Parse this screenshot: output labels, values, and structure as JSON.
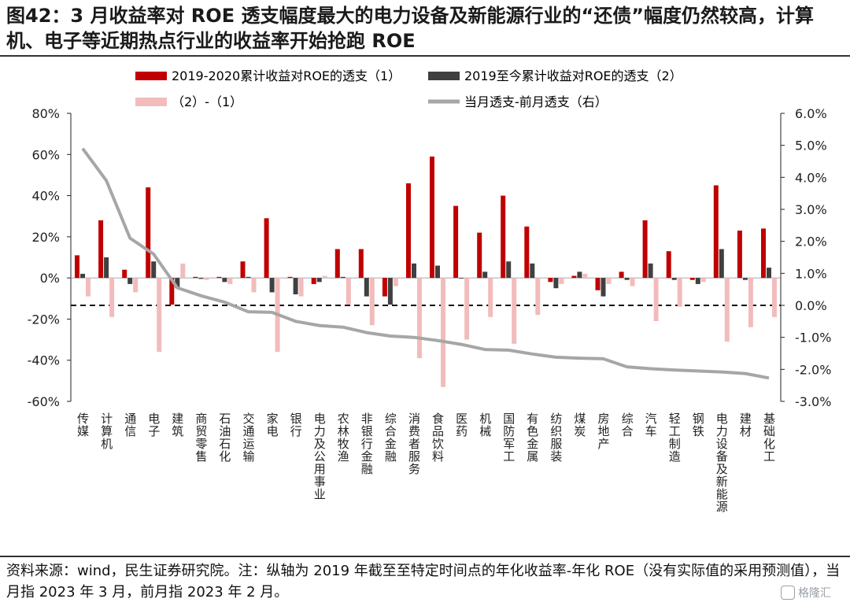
{
  "page": {
    "title": "图42：3 月收益率对 ROE 透支幅度最大的电力设备及新能源行业的“还债”幅度仍然较高，计算机、电子等近期热点行业的收益率开始抢跑 ROE",
    "footer": "资料来源：wind，民生证券研究院。注：纵轴为 2019 年截至至特定时间点的年化收益率-年化 ROE（没有实际值的采用预测值），当月指 2023 年 3 月，前月指 2023 年 2 月。",
    "watermark": "格隆汇"
  },
  "colors": {
    "series1": "#c00000",
    "series2": "#404040",
    "series3": "#f2bcbc",
    "series4": "#a6a6a6"
  },
  "chart_data": {
    "type": "bar",
    "title": "",
    "legend_position": "top",
    "categories": [
      "传媒",
      "计算机",
      "通信",
      "电子",
      "建筑",
      "商贸零售",
      "石油石化",
      "交通运输",
      "家电",
      "银行",
      "电力及公用事业",
      "农林牧渔",
      "非银行金融",
      "综合金融",
      "消费者服务",
      "食品饮料",
      "医药",
      "机械",
      "国防军工",
      "有色金属",
      "纺织服装",
      "煤炭",
      "房地产",
      "综合",
      "汽车",
      "轻工制造",
      "钢铁",
      "电力设备及新能源",
      "建材",
      "基础化工"
    ],
    "left_axis": {
      "ylim": [
        -60,
        80
      ],
      "ticks": [
        -60,
        -40,
        -20,
        0,
        20,
        40,
        60,
        80
      ],
      "unit": "%"
    },
    "right_axis": {
      "ylim": [
        -3.0,
        6.0
      ],
      "ticks": [
        -3.0,
        -2.0,
        -1.0,
        0.0,
        1.0,
        2.0,
        3.0,
        4.0,
        5.0,
        6.0
      ],
      "unit": "%"
    },
    "right_reference_line": 0.0,
    "series": [
      {
        "name": "2019-2020累计收益对ROE的透支（1）",
        "kind": "bar",
        "axis": "left",
        "values": [
          11,
          28,
          4,
          44,
          -13,
          0.5,
          0.5,
          8,
          29,
          0.5,
          -3,
          14,
          14,
          -9,
          46,
          59,
          35,
          22,
          40,
          25,
          -2,
          1,
          -6,
          3,
          28,
          13,
          -1,
          45,
          23,
          24
        ]
      },
      {
        "name": "2019至今累计收益对ROE的透支（2）",
        "kind": "bar",
        "axis": "left",
        "values": [
          2,
          10,
          -3,
          8,
          -5,
          -0.5,
          -2,
          0.5,
          -7,
          -8,
          -2,
          0.5,
          -9,
          -13,
          7,
          6,
          0,
          3,
          8,
          7,
          -5,
          3,
          -9,
          -1,
          7,
          -1,
          -3,
          14,
          -1,
          5
        ]
      },
      {
        "name": "（2）-（1）",
        "kind": "bar",
        "axis": "left",
        "values": [
          -9,
          -19,
          -7,
          -36,
          7,
          -1,
          -3,
          -7,
          -36,
          -9,
          1,
          -13,
          -23,
          -4,
          -39,
          -53,
          -30,
          -19,
          -32,
          -18,
          -3,
          2,
          -3,
          -4,
          -21,
          -14,
          -2,
          -31,
          -24,
          -19
        ]
      },
      {
        "name": "当月透支-前月透支（右）",
        "kind": "line",
        "axis": "right",
        "values": [
          4.9,
          3.9,
          2.1,
          1.6,
          0.55,
          0.3,
          0.1,
          -0.2,
          -0.22,
          -0.5,
          -0.63,
          -0.68,
          -0.85,
          -0.96,
          -1.0,
          -1.1,
          -1.22,
          -1.38,
          -1.4,
          -1.52,
          -1.62,
          -1.65,
          -1.67,
          -1.92,
          -1.98,
          -2.02,
          -2.05,
          -2.08,
          -2.13,
          -2.27
        ]
      }
    ]
  }
}
